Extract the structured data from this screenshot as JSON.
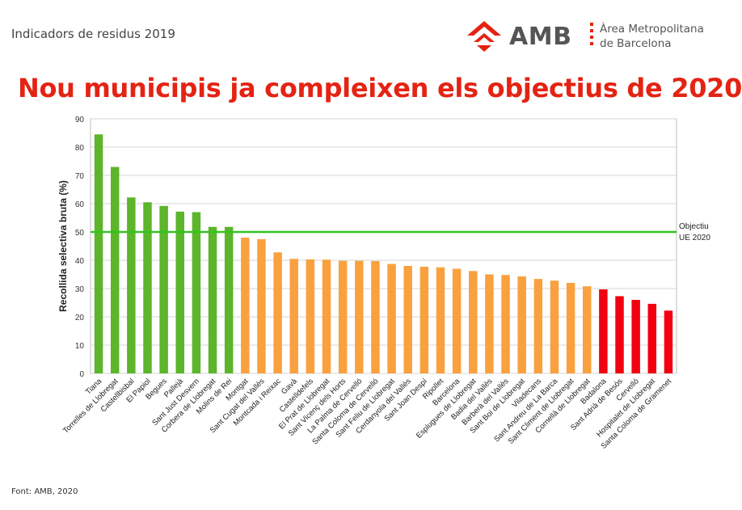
{
  "header": {
    "subtitle": "Indicadors de residus 2019",
    "logo_text": "AMB",
    "org_line1": "Àrea Metropolitana",
    "org_line2": "de Barcelona",
    "headline": "Nou municipis ja compleixen els objectius de 2020"
  },
  "footer": {
    "source": "Font: AMB, 2020"
  },
  "colors": {
    "above_target": "#5cb52a",
    "below_target": "#f9a13e",
    "far_below": "#f2000f",
    "target_line": "#33c41f",
    "headline": "#e42313"
  },
  "chart_data": {
    "type": "bar",
    "title": "",
    "xlabel": "",
    "ylabel": "Recollida selectiva bruta (%)",
    "ylim": [
      0,
      90
    ],
    "yticks": [
      0,
      10,
      20,
      30,
      40,
      50,
      60,
      70,
      80,
      90
    ],
    "grid": true,
    "reference_line": {
      "value": 50,
      "label_line1": "Objectiu",
      "label_line2": "UE 2020"
    },
    "categories": [
      "Tiana",
      "Torrelles de Llobregat",
      "Castellbisbal",
      "El Papiol",
      "Begues",
      "Pallejà",
      "Sant Just Desvern",
      "Corbera de Llobregat",
      "Molins de Rei",
      "Montgat",
      "Sant Cugat del Vallès",
      "Montcada i Reixac",
      "Gavà",
      "Castelldefels",
      "El Prat de Llobregat",
      "Sant Vicenç dels Horts",
      "La Palma de Cervelló",
      "Santa Coloma de Cervelló",
      "Sant Feliu de Llobregat",
      "Cerdanyola del Vallès",
      "Sant Joan Despí",
      "Ripollet",
      "Barcelona",
      "Esplugues de Llobregat",
      "Badia del Vallès",
      "Barberà del Vallès",
      "Sant Boi de Llobregat",
      "Viladecans",
      "Sant Andreu de La Barca",
      "Sant Climent de Llobregat",
      "Cornellà de Llobregat",
      "Badalona",
      "Sant Adrià de Besòs",
      "Cervelló",
      "Hospitalet de Llobregat",
      "Santa Coloma de Gramenet"
    ],
    "values": [
      84.5,
      73,
      62.2,
      60.5,
      59.2,
      57.2,
      57,
      51.8,
      51.8,
      48,
      47.5,
      42.8,
      40.5,
      40.3,
      40.2,
      39.8,
      39.8,
      39.7,
      38.7,
      38,
      37.7,
      37.5,
      37,
      36.2,
      35,
      34.8,
      34.3,
      33.4,
      32.8,
      32,
      30.8,
      29.7,
      27.3,
      26,
      24.6,
      22.2
    ],
    "value_groups": [
      "green",
      "green",
      "green",
      "green",
      "green",
      "green",
      "green",
      "green",
      "green",
      "orange",
      "orange",
      "orange",
      "orange",
      "orange",
      "orange",
      "orange",
      "orange",
      "orange",
      "orange",
      "orange",
      "orange",
      "orange",
      "orange",
      "orange",
      "orange",
      "orange",
      "orange",
      "orange",
      "orange",
      "orange",
      "orange",
      "red",
      "red",
      "red",
      "red",
      "red"
    ]
  }
}
